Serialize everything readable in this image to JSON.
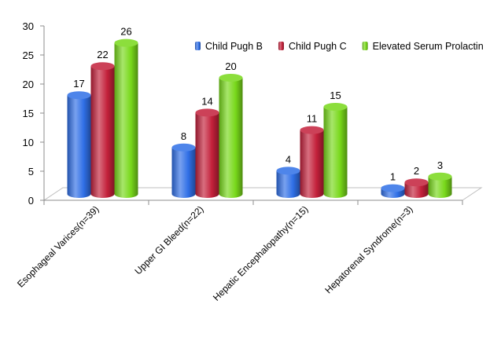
{
  "chart_data": {
    "type": "bar",
    "categories": [
      "Esophageal Varices(n=39)",
      "Upper GI Bleed(n=22)",
      "Hepatic Encephalopathy(n=15)",
      "Hepatorenal Syndrome(n=3)"
    ],
    "series": [
      {
        "name": "Child Pugh B",
        "values": [
          17,
          8,
          4,
          1
        ],
        "color": "#2f6fe6"
      },
      {
        "name": "Child Pugh C",
        "values": [
          22,
          14,
          11,
          2
        ],
        "color": "#c3203a"
      },
      {
        "name": "Elevated Serum Prolactin",
        "values": [
          26,
          20,
          15,
          3
        ],
        "color": "#78d81a"
      }
    ],
    "title": "",
    "xlabel": "",
    "ylabel": "",
    "ylim": [
      0,
      30
    ],
    "yticks": [
      0,
      5,
      10,
      15,
      20,
      25,
      30
    ],
    "grid": false,
    "legend_position": "top-right",
    "style": "3d-cylinder"
  }
}
